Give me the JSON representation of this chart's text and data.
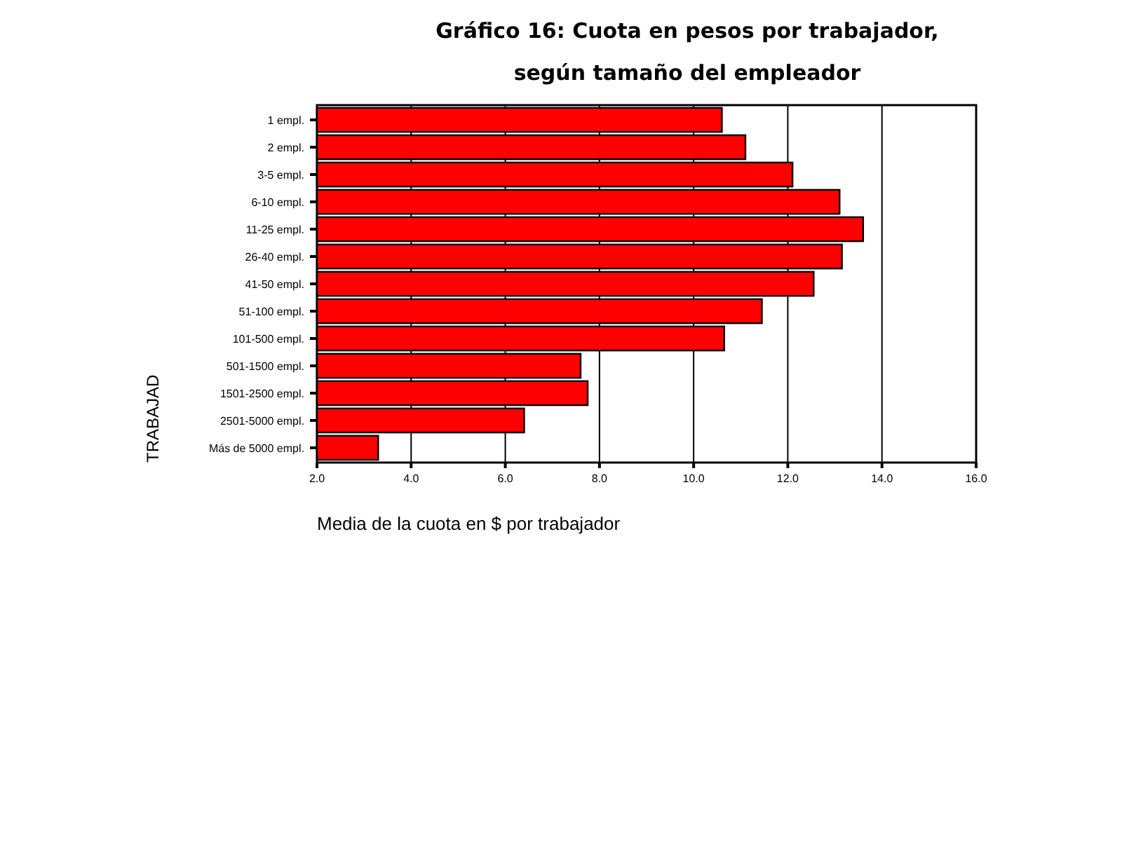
{
  "chart_data": {
    "type": "bar",
    "orientation": "horizontal",
    "title": "Gráfico 16: Cuota en pesos por trabajador,",
    "subtitle": "según tamaño del empleador",
    "xlabel": "Media de la cuota en $ por trabajador",
    "ylabel": "TRABAJAD",
    "categories": [
      "1 empl.",
      "2 empl.",
      "3-5 empl.",
      "6-10 empl.",
      "11-25 empl.",
      "26-40 empl.",
      "41-50 empl.",
      "51-100 empl.",
      "101-500 empl.",
      "501-1500 empl.",
      "1501-2500 empl.",
      "2501-5000 empl.",
      "Más de 5000 empl."
    ],
    "values": [
      10.6,
      11.1,
      12.1,
      13.1,
      13.6,
      13.15,
      12.55,
      11.45,
      10.65,
      7.6,
      7.75,
      6.4,
      3.3
    ],
    "color": "#ff0000",
    "xlim": [
      2,
      16
    ],
    "xticks": [
      {
        "value": 2,
        "label": "2.0"
      },
      {
        "value": 4,
        "label": "4.0"
      },
      {
        "value": 6,
        "label": "6.0"
      },
      {
        "value": 8,
        "label": "8.0"
      },
      {
        "value": 10,
        "label": "10.0"
      },
      {
        "value": 12,
        "label": "12.0"
      },
      {
        "value": 14,
        "label": "14.0"
      },
      {
        "value": 16,
        "label": "16.0"
      }
    ],
    "grid": "x"
  }
}
